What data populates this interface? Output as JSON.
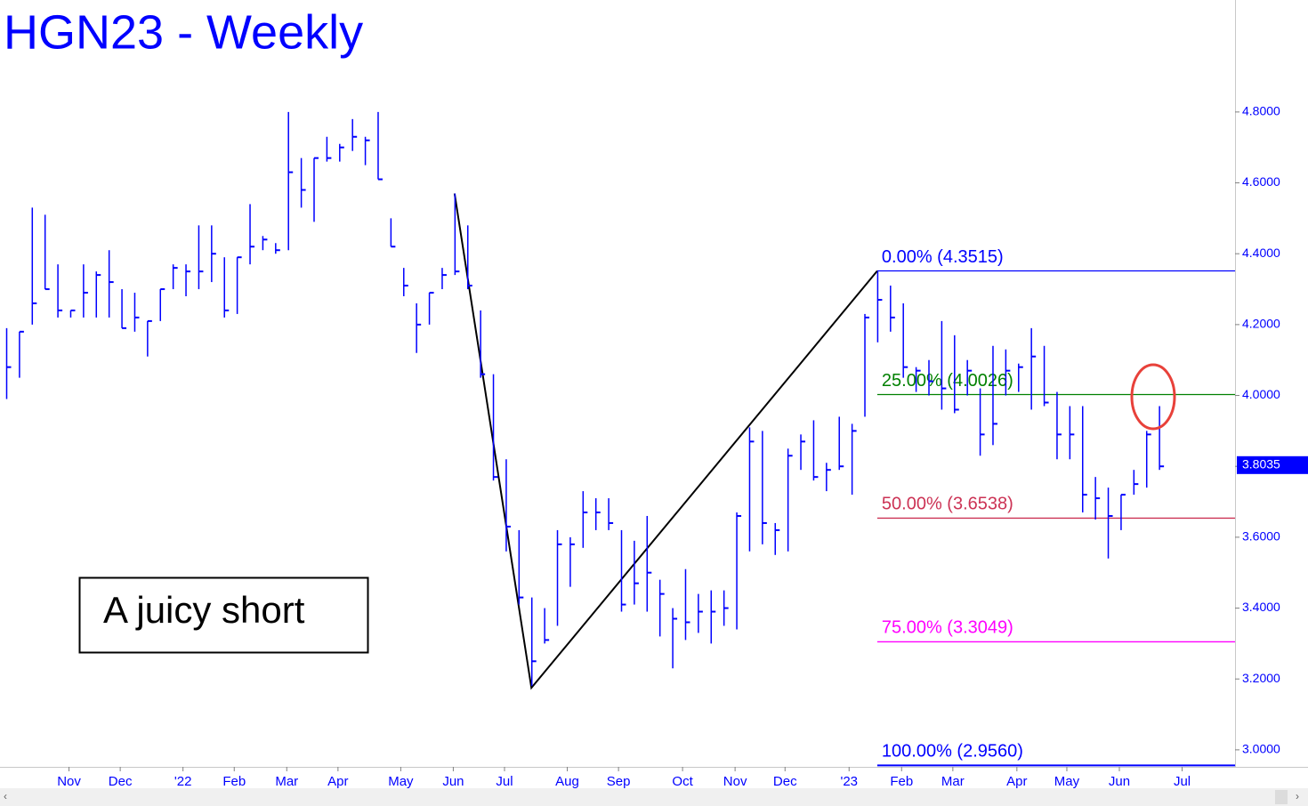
{
  "chart_data": {
    "type": "ohlc",
    "title": "HGN23 - Weekly",
    "color": "#0000ff",
    "xlim": [
      0,
      96
    ],
    "xticks": [
      {
        "value": 4.9,
        "label": "Nov"
      },
      {
        "value": 8.9,
        "label": "Dec"
      },
      {
        "value": 13.8,
        "label": "'22"
      },
      {
        "value": 17.8,
        "label": "Feb"
      },
      {
        "value": 21.9,
        "label": "Mar"
      },
      {
        "value": 25.9,
        "label": "Apr"
      },
      {
        "value": 30.8,
        "label": "May"
      },
      {
        "value": 34.9,
        "label": "Jun"
      },
      {
        "value": 38.9,
        "label": "Jul"
      },
      {
        "value": 43.8,
        "label": "Aug"
      },
      {
        "value": 47.8,
        "label": "Sep"
      },
      {
        "value": 52.8,
        "label": "Oct"
      },
      {
        "value": 56.9,
        "label": "Nov"
      },
      {
        "value": 60.8,
        "label": "Dec"
      },
      {
        "value": 65.8,
        "label": "'23"
      },
      {
        "value": 69.9,
        "label": "Feb"
      },
      {
        "value": 73.9,
        "label": "Mar"
      },
      {
        "value": 78.9,
        "label": "Apr"
      },
      {
        "value": 82.8,
        "label": "May"
      },
      {
        "value": 86.9,
        "label": "Jun"
      },
      {
        "value": 91.8,
        "label": "Jul"
      }
    ],
    "ylim": [
      2.952,
      5.116
    ],
    "yticks": [
      {
        "value": 3.0,
        "label": "3.0000"
      },
      {
        "value": 3.2,
        "label": "3.2000"
      },
      {
        "value": 3.4,
        "label": "3.4000"
      },
      {
        "value": 3.6,
        "label": "3.6000"
      },
      {
        "value": 3.8,
        "label": "3.8000"
      },
      {
        "value": 4.0,
        "label": "4.0000"
      },
      {
        "value": 4.2,
        "label": "4.2000"
      },
      {
        "value": 4.4,
        "label": "4.4000"
      },
      {
        "value": 4.6,
        "label": "4.6000"
      },
      {
        "value": 4.8,
        "label": "4.8000"
      }
    ],
    "high": [
      4.19,
      4.18,
      4.53,
      4.51,
      4.37,
      4.24,
      4.37,
      4.35,
      4.41,
      4.3,
      4.29,
      4.21,
      4.3,
      4.37,
      4.37,
      4.48,
      4.48,
      4.39,
      4.39,
      4.54,
      4.45,
      4.43,
      4.8,
      4.67,
      4.67,
      4.73,
      4.71,
      4.78,
      4.73,
      4.8,
      4.5,
      4.36,
      4.26,
      4.29,
      4.36,
      4.57,
      4.48,
      4.24,
      4.06,
      3.82,
      3.62,
      3.43,
      3.4,
      3.62,
      3.6,
      3.73,
      3.71,
      3.71,
      3.62,
      3.59,
      3.66,
      3.48,
      3.4,
      3.51,
      3.44,
      3.45,
      3.45,
      3.67,
      3.91,
      3.9,
      3.64,
      3.85,
      3.89,
      3.93,
      3.81,
      3.94,
      3.92,
      4.23,
      4.35,
      4.31,
      4.26,
      4.08,
      4.1,
      4.21,
      4.17,
      4.1,
      4.02,
      4.14,
      4.13,
      4.09,
      4.19,
      4.14,
      4.01,
      3.97,
      3.97,
      3.77,
      3.74,
      3.72,
      3.79,
      3.9,
      3.97
    ],
    "low": [
      3.99,
      4.05,
      4.2,
      4.3,
      4.22,
      4.22,
      4.22,
      4.22,
      4.22,
      4.19,
      4.18,
      4.11,
      4.21,
      4.3,
      4.28,
      4.3,
      4.32,
      4.22,
      4.23,
      4.37,
      4.41,
      4.4,
      4.41,
      4.53,
      4.49,
      4.66,
      4.66,
      4.69,
      4.65,
      4.61,
      4.42,
      4.28,
      4.12,
      4.2,
      4.3,
      4.34,
      4.3,
      4.05,
      3.76,
      3.56,
      3.41,
      3.18,
      3.3,
      3.35,
      3.46,
      3.57,
      3.62,
      3.62,
      3.39,
      3.41,
      3.39,
      3.32,
      3.23,
      3.31,
      3.33,
      3.3,
      3.35,
      3.34,
      3.56,
      3.58,
      3.55,
      3.56,
      3.79,
      3.76,
      3.73,
      3.79,
      3.72,
      3.94,
      4.15,
      4.18,
      4.05,
      4.01,
      4.0,
      3.96,
      3.95,
      4.0,
      3.83,
      3.86,
      4.0,
      4.01,
      3.96,
      3.97,
      3.82,
      3.82,
      3.67,
      3.65,
      3.54,
      3.62,
      3.72,
      3.74,
      3.79
    ],
    "close": [
      4.08,
      4.18,
      4.26,
      4.3,
      4.24,
      4.24,
      4.29,
      4.34,
      4.32,
      4.19,
      4.22,
      4.21,
      4.3,
      4.36,
      4.35,
      4.35,
      4.4,
      4.24,
      4.39,
      4.42,
      4.44,
      4.41,
      4.63,
      4.58,
      4.67,
      4.67,
      4.7,
      4.73,
      4.72,
      4.61,
      4.42,
      4.31,
      4.2,
      4.29,
      4.34,
      4.35,
      4.31,
      4.06,
      3.77,
      3.63,
      3.43,
      3.25,
      3.31,
      3.58,
      3.58,
      3.67,
      3.67,
      3.64,
      3.41,
      3.47,
      3.5,
      3.44,
      3.37,
      3.36,
      3.39,
      3.39,
      3.4,
      3.66,
      3.87,
      3.64,
      3.62,
      3.83,
      3.87,
      3.77,
      3.79,
      3.8,
      3.9,
      4.22,
      4.27,
      4.22,
      4.08,
      4.07,
      4.04,
      4.02,
      3.96,
      4.07,
      3.89,
      3.92,
      4.07,
      4.08,
      4.11,
      3.98,
      3.89,
      3.89,
      3.72,
      3.71,
      3.66,
      3.72,
      3.75,
      3.89,
      3.8
    ],
    "trendline": {
      "x": [
        35,
        41,
        68
      ],
      "y": [
        4.57,
        3.175,
        4.3515
      ]
    },
    "levels": [
      {
        "label": "0.00% (4.3515)",
        "value": 4.3515,
        "color": "#0000ff"
      },
      {
        "label": "25.00% (4.0026)",
        "value": 4.0026,
        "color": "#008000"
      },
      {
        "label": "50.00% (3.6538)",
        "value": 3.6538,
        "color": "#cc3355"
      },
      {
        "label": "75.00% (3.3049)",
        "value": 3.3049,
        "color": "#ff00ff"
      },
      {
        "label": "100.00% (2.9560)",
        "value": 2.956,
        "color": "#0000ff"
      }
    ],
    "last": {
      "value": 3.8035,
      "label": "3.8035"
    },
    "annotation": "A juicy short"
  }
}
